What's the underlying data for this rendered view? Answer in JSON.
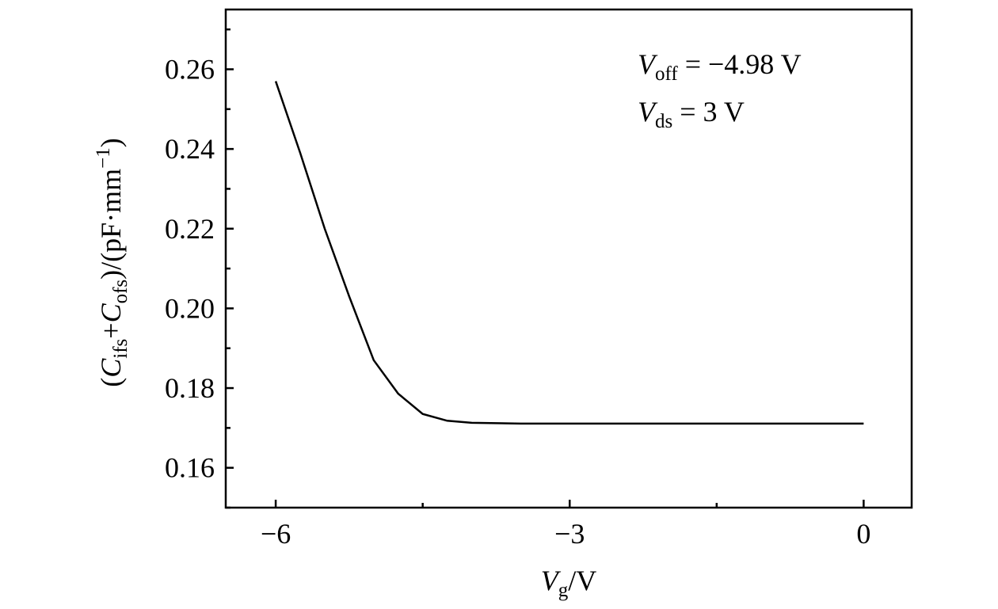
{
  "chart_data": {
    "type": "line",
    "xlabel": [
      {
        "text": "V",
        "style": "italic"
      },
      {
        "text": "g",
        "style": "sub"
      },
      {
        "text": "/V",
        "style": "normal"
      }
    ],
    "ylabel": [
      {
        "text": "(",
        "style": "normal"
      },
      {
        "text": "C",
        "style": "italic"
      },
      {
        "text": "ifs",
        "style": "sub"
      },
      {
        "text": "+",
        "style": "normal"
      },
      {
        "text": "C",
        "style": "italic"
      },
      {
        "text": "ofs",
        "style": "sub"
      },
      {
        "text": ")/(pF·mm",
        "style": "normal"
      },
      {
        "text": "−1",
        "style": "sup"
      },
      {
        "text": ")",
        "style": "normal"
      }
    ],
    "annotations": [
      [
        {
          "text": "V",
          "style": "italic"
        },
        {
          "text": "off",
          "style": "sub"
        },
        {
          "text": " = −4.98 V",
          "style": "normal"
        }
      ],
      [
        {
          "text": "V",
          "style": "italic"
        },
        {
          "text": "ds",
          "style": "sub"
        },
        {
          "text": " = 3 V",
          "style": "normal"
        }
      ]
    ],
    "x": [
      -6.0,
      -5.75,
      -5.5,
      -5.25,
      -5.0,
      -4.75,
      -4.5,
      -4.25,
      -4.0,
      -3.5,
      -3.0,
      -2.0,
      -1.0,
      0.0
    ],
    "series": [
      {
        "color": "#000000",
        "values": [
          0.257,
          0.239,
          0.22,
          0.203,
          0.187,
          0.1786,
          0.1735,
          0.1718,
          0.1713,
          0.1711,
          0.1711,
          0.1711,
          0.1711,
          0.1711
        ]
      }
    ],
    "xlim": [
      -6.51,
      0.49
    ],
    "ylim": [
      0.15,
      0.275
    ],
    "xticks": [
      {
        "value": -6,
        "label": "−6"
      },
      {
        "value": -3,
        "label": "−3"
      },
      0
    ],
    "xminorticks": [
      -4.5,
      -1.5
    ],
    "yticks": [
      0.16,
      0.18,
      {
        "value": 0.2,
        "label": "0.20"
      },
      0.22,
      0.24,
      0.26
    ],
    "yminorticks": [
      0.15,
      0.17,
      0.19,
      0.21,
      0.23,
      0.25,
      0.27
    ]
  }
}
